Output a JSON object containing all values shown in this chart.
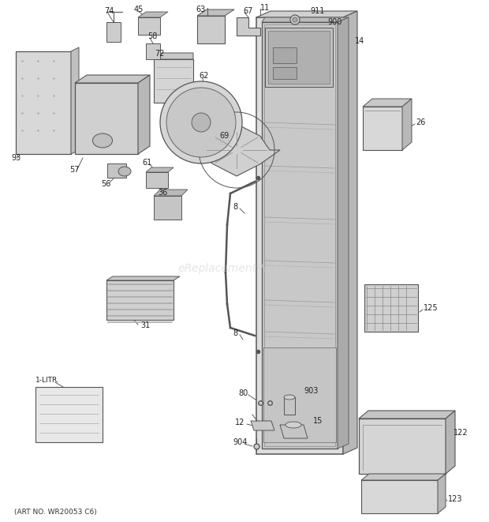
{
  "footer": "(ART NO. WR20053 C6)",
  "watermark": "eReplacementParts.com",
  "bg_color": "#ffffff",
  "lc": "#555555",
  "tc": "#222222",
  "wc": "#cccccc"
}
